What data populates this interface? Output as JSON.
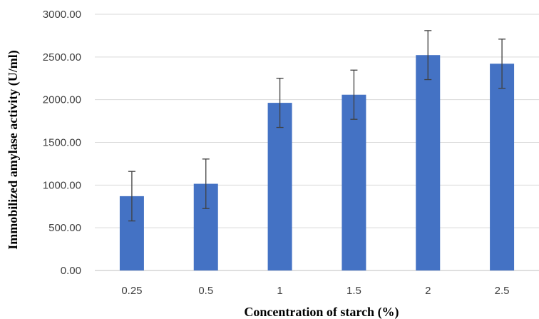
{
  "chart_data": {
    "type": "bar",
    "categories": [
      "0.25",
      "0.5",
      "1",
      "1.5",
      "2",
      "2.5"
    ],
    "series": [
      {
        "values": [
          870,
          1015,
          1963,
          2058,
          2522,
          2421
        ],
        "errors": [
          290,
          290,
          288,
          288,
          287,
          288
        ],
        "color": "#4472c4"
      }
    ],
    "xlabel": "Concentration of starch (%)",
    "ylabel": "Immobilized amylase activity (U/ml)",
    "ylim": [
      0,
      3000
    ],
    "yticks": [
      "0.00",
      "500.00",
      "1000.00",
      "1500.00",
      "2000.00",
      "2500.00",
      "3000.00"
    ],
    "ytick_values": [
      0,
      500,
      1000,
      1500,
      2000,
      2500,
      3000
    ],
    "grid": true,
    "legend": "none"
  }
}
